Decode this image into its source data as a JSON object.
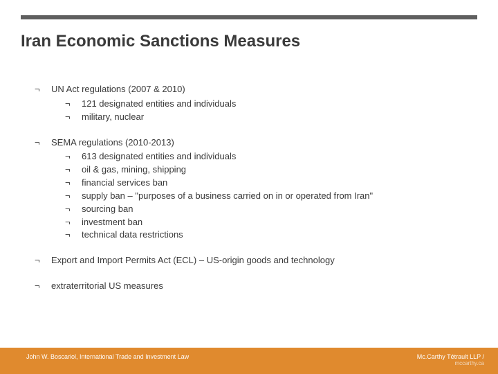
{
  "colors": {
    "top_bar": "#5f5f5f",
    "footer_bg": "#e08a2e",
    "text": "#3a3a3a",
    "footer_text": "#ffffff"
  },
  "title": "Iran Economic Sanctions Measures",
  "bullet_marker": "¬",
  "items": [
    {
      "text": "UN Act regulations (2007 & 2010)",
      "children": [
        "121 designated entities and individuals",
        "military, nuclear"
      ]
    },
    {
      "text": "SEMA regulations (2010-2013)",
      "children": [
        "613 designated entities and individuals",
        "oil & gas, mining, shipping",
        "financial services ban",
        "supply ban – \"purposes of a business carried on in or operated from Iran\"",
        "sourcing ban",
        "investment ban",
        "technical data restrictions"
      ]
    },
    {
      "text": "Export and Import Permits Act (ECL) – US-origin goods and technology",
      "children": []
    },
    {
      "text": "extraterritorial US measures",
      "children": []
    }
  ],
  "footer": {
    "left": "John W. Boscariol, International Trade and Investment Law",
    "right_line1": "Mc.Carthy Tétrault LLP /",
    "right_line2": "mccarthy.ca"
  }
}
